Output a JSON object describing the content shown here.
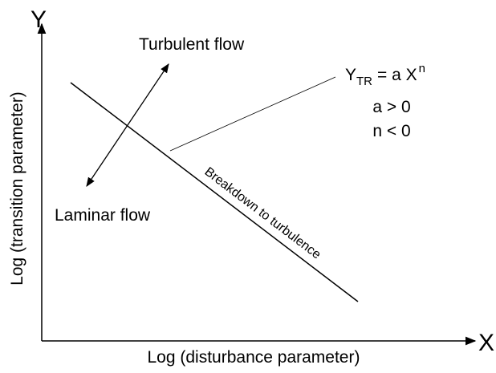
{
  "axes": {
    "y_symbol": "Y",
    "x_symbol": "X",
    "y_label": "Log (transition parameter)",
    "x_label": "Log (disturbance parameter)"
  },
  "regions": {
    "upper": "Turbulent flow",
    "lower": "Laminar flow"
  },
  "line_label": "Breakdown to turbulence",
  "equation": {
    "base": "Y",
    "subscript": "TR",
    "rest": "= a X",
    "superscript": "n"
  },
  "conditions": [
    "a > 0",
    "n < 0"
  ]
}
